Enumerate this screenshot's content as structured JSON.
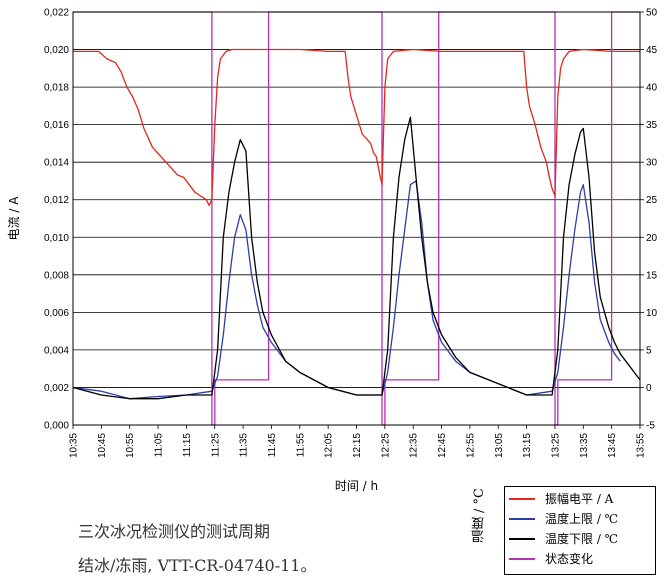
{
  "chart_data": {
    "type": "line",
    "xlabel": "时间 / h",
    "ylabel": "电流 / A",
    "x_ticks": [
      "10:35",
      "10:45",
      "10:55",
      "11:05",
      "11:15",
      "11:25",
      "11:35",
      "11:45",
      "11:55",
      "12:05",
      "12:15",
      "12:25",
      "12:35",
      "12:45",
      "12:55",
      "13:05",
      "13:15",
      "13:25",
      "13:35",
      "13:45",
      "13:55"
    ],
    "xlim": [
      "10:35",
      "13:55"
    ],
    "y_left": {
      "ylim": [
        0.0,
        0.022
      ],
      "ticks": [
        "0,000",
        "0,002",
        "0,004",
        "0,006",
        "0,008",
        "0,010",
        "0,012",
        "0,014",
        "0,016",
        "0,018",
        "0,020",
        "0,022"
      ]
    },
    "y_right": {
      "ylim": [
        -5,
        50
      ],
      "ticks": [
        "-5",
        "0",
        "5",
        "10",
        "15",
        "20",
        "25",
        "30",
        "35",
        "40",
        "45",
        "50"
      ]
    },
    "grid": "horizontal",
    "series": [
      {
        "name": "振幅电平 / A",
        "axis": "left",
        "color": "#e0281e",
        "x": [
          "10:35",
          "10:44",
          "10:47",
          "10:50",
          "10:52",
          "10:54",
          "10:56",
          "10:58",
          "11:00",
          "11:03",
          "11:06",
          "11:09",
          "11:12",
          "11:14",
          "11:16",
          "11:18",
          "11:20",
          "11:22",
          "11:23",
          "11:24",
          "11:25",
          "11:26",
          "11:27",
          "11:29",
          "11:31",
          "11:35",
          "11:45",
          "11:55",
          "12:05",
          "12:11",
          "12:12",
          "12:13",
          "12:15",
          "12:17",
          "12:20",
          "12:21",
          "12:22",
          "12:23",
          "12:24",
          "12:25",
          "12:26",
          "12:28",
          "12:35",
          "12:45",
          "12:55",
          "13:05",
          "13:14",
          "13:15",
          "13:16",
          "13:18",
          "13:20",
          "13:22",
          "13:23",
          "13:24",
          "13:25",
          "13:26",
          "13:27",
          "13:28",
          "13:30",
          "13:35",
          "13:45",
          "13:55"
        ],
        "y": [
          0.0199,
          0.0199,
          0.0195,
          0.0193,
          0.0188,
          0.018,
          0.0175,
          0.0168,
          0.0158,
          0.0148,
          0.0143,
          0.0138,
          0.0133,
          0.0132,
          0.0128,
          0.0124,
          0.0122,
          0.012,
          0.0117,
          0.012,
          0.016,
          0.0185,
          0.0195,
          0.0199,
          0.02,
          0.02,
          0.02,
          0.02,
          0.0199,
          0.0199,
          0.0185,
          0.0175,
          0.0165,
          0.0155,
          0.015,
          0.0145,
          0.0143,
          0.0135,
          0.0128,
          0.018,
          0.0195,
          0.0199,
          0.02,
          0.0199,
          0.0199,
          0.0199,
          0.0199,
          0.018,
          0.017,
          0.016,
          0.0148,
          0.014,
          0.0132,
          0.0126,
          0.0122,
          0.0175,
          0.019,
          0.0195,
          0.0199,
          0.02,
          0.0199,
          0.0199
        ]
      },
      {
        "name": "温度上限 / ℃",
        "axis": "right",
        "color": "#2b3ea8",
        "x": [
          "10:35",
          "10:45",
          "10:55",
          "11:05",
          "11:15",
          "11:24",
          "11:26",
          "11:28",
          "11:30",
          "11:32",
          "11:34",
          "11:36",
          "11:38",
          "11:40",
          "11:42",
          "11:45",
          "11:50",
          "11:55",
          "12:00",
          "12:05",
          "12:15",
          "12:24",
          "12:26",
          "12:28",
          "12:30",
          "12:32",
          "12:34",
          "12:36",
          "12:38",
          "12:40",
          "12:42",
          "12:45",
          "12:50",
          "12:55",
          "13:05",
          "13:15",
          "13:24",
          "13:26",
          "13:28",
          "13:30",
          "13:32",
          "13:34",
          "13:35",
          "13:37",
          "13:39",
          "13:41",
          "13:44",
          "13:46",
          "13:48"
        ],
        "y": [
          0.0,
          -0.5,
          -1.5,
          -1.2,
          -1.0,
          -0.5,
          1.5,
          7.0,
          14.0,
          20.0,
          23.0,
          21.0,
          15.0,
          11.0,
          8.0,
          6.0,
          3.5,
          2.0,
          1.0,
          0.0,
          -1.0,
          -1.0,
          2.0,
          8.0,
          15.0,
          21.0,
          27.0,
          27.5,
          22.0,
          14.0,
          9.0,
          6.0,
          3.5,
          2.0,
          0.5,
          -1.0,
          -0.5,
          2.0,
          8.0,
          15.0,
          21.0,
          26.0,
          27.0,
          22.0,
          14.0,
          9.0,
          6.0,
          4.5,
          3.5
        ]
      },
      {
        "name": "温度下限 / ℃",
        "axis": "right",
        "color": "#000000",
        "x": [
          "10:35",
          "10:45",
          "10:55",
          "11:05",
          "11:15",
          "11:24",
          "11:26",
          "11:28",
          "11:30",
          "11:32",
          "11:34",
          "11:36",
          "11:38",
          "11:40",
          "11:42",
          "11:45",
          "11:50",
          "11:55",
          "12:00",
          "12:05",
          "12:15",
          "12:24",
          "12:26",
          "12:28",
          "12:30",
          "12:32",
          "12:34",
          "12:36",
          "12:38",
          "12:40",
          "12:42",
          "12:45",
          "12:50",
          "12:55",
          "13:05",
          "13:15",
          "13:24",
          "13:26",
          "13:28",
          "13:30",
          "13:32",
          "13:34",
          "13:35",
          "13:37",
          "13:39",
          "13:41",
          "13:44",
          "13:46",
          "13:48",
          "13:52",
          "13:55"
        ],
        "y": [
          0.0,
          -1.0,
          -1.5,
          -1.5,
          -1.0,
          -1.0,
          5.0,
          20.0,
          26.0,
          30.0,
          33.0,
          31.5,
          20.0,
          14.0,
          10.0,
          7.0,
          3.5,
          2.0,
          1.0,
          0.0,
          -1.0,
          -1.0,
          5.0,
          20.0,
          28.0,
          33.0,
          36.0,
          28.0,
          20.0,
          14.0,
          10.0,
          7.0,
          4.0,
          2.0,
          0.5,
          -1.0,
          -1.0,
          5.0,
          20.0,
          27.0,
          31.0,
          34.0,
          34.5,
          28.0,
          18.0,
          12.0,
          8.0,
          6.0,
          4.5,
          2.5,
          1.0
        ]
      },
      {
        "name": "状态变化",
        "axis": "right",
        "color": "#b52fb5",
        "x": [
          "10:35",
          "11:24",
          "11:24",
          "11:25",
          "11:25",
          "11:44",
          "11:44",
          "12:05",
          "12:24",
          "12:24",
          "12:25",
          "12:25",
          "12:44",
          "12:44",
          "13:05",
          "13:25",
          "13:25",
          "13:26",
          "13:26",
          "13:45",
          "13:45",
          "13:55"
        ],
        "y": [
          50,
          50,
          -5,
          -5,
          1,
          1,
          50,
          50,
          50,
          -5,
          -5,
          1,
          1,
          50,
          50,
          50,
          -5,
          -5,
          1,
          1,
          50,
          50
        ]
      }
    ]
  },
  "legend": {
    "title": "温度 / °C",
    "items": [
      {
        "label": "振幅电平 / A",
        "color": "#e0281e"
      },
      {
        "label": "温度上限 / ℃",
        "color": "#2b3ea8"
      },
      {
        "label": "温度下限 / ℃",
        "color": "#000000"
      },
      {
        "label": "状态变化",
        "color": "#b52fb5"
      }
    ]
  },
  "caption": {
    "line1": "三次冰况检测仪的测试周期",
    "line2": "结冰/冻雨, VTT-CR-04740-11。"
  }
}
